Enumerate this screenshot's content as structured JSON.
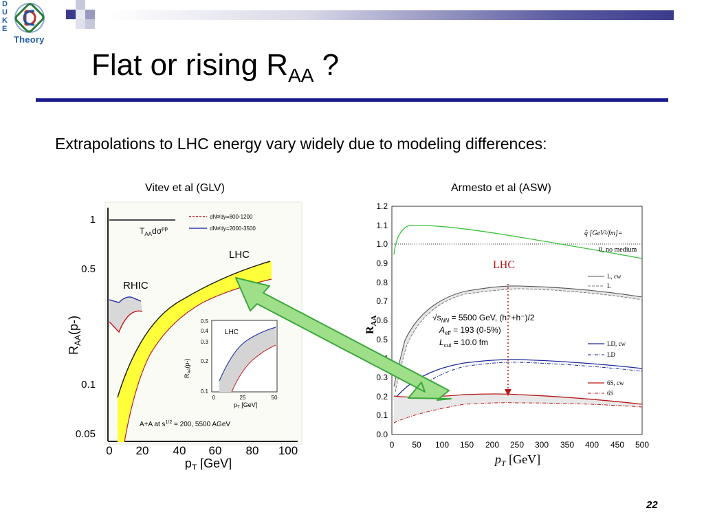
{
  "logo": {
    "letters": [
      "D",
      "U",
      "K",
      "E"
    ],
    "text": "Theory"
  },
  "slide": {
    "title_main": "Flat or rising R",
    "title_sub": "AA",
    "title_end": " ?",
    "subtitle": "Extrapolations to LHC energy vary widely due to modeling differences:",
    "page_number": "22",
    "colors": {
      "title_rule": "#1a1a8e",
      "arrow_fill": "#9fdf8a",
      "arrow_stroke": "#3aa83a"
    }
  },
  "left_plot": {
    "caption": "Vitev et al (GLV)",
    "y_ticks": [
      "1",
      "0.5",
      "0.1",
      "0.05"
    ],
    "x_ticks": [
      "0",
      "20",
      "40",
      "60",
      "80",
      "100"
    ],
    "xlabel_main": "p",
    "xlabel_sub": "T",
    "xlabel_unit": " [GeV]",
    "ylabel_main": "R",
    "ylabel_sub": "AA",
    "ylabel_paren": "(p-)",
    "label_lhc": "LHC",
    "label_rhic": "RHIC",
    "ref_label": "T",
    "ref_label_sub": "AA",
    "ref_label_end": "dσ",
    "ref_label_sup": "pp",
    "legend": [
      "dNᵍ/dy=800-1200",
      "dNᵍ/dy=2000-3500"
    ],
    "bottom_note": "A+A at s",
    "bottom_note_sup": "1/2",
    "bottom_note_end": " = 200, 5500 AGeV",
    "inset": {
      "label": "LHC",
      "y_ticks": [
        "0.5",
        "0.4",
        "0.3",
        "0.2",
        "0.1"
      ],
      "x_ticks": [
        "0",
        "25",
        "50"
      ],
      "ylabel": "R",
      "ylabel_sub": "AA",
      "ylabel_end": "(p-)",
      "xlabel": "p",
      "xlabel_sub": "T",
      "xlabel_end": " [GeV]"
    }
  },
  "right_plot": {
    "caption": "Armesto et al (ASW)",
    "y_ticks": [
      "1.2",
      "1.1",
      "1.0",
      "0.9",
      "0.8",
      "0.7",
      "0.6",
      "0.5",
      "0.4",
      "0.3",
      "0.2",
      "0.1",
      "0.0"
    ],
    "x_ticks": [
      "0",
      "50",
      "100",
      "150",
      "200",
      "250",
      "300",
      "350",
      "400",
      "450",
      "500"
    ],
    "xlabel_main": "p",
    "xlabel_sub": "T",
    "xlabel_unit": " [GeV]",
    "ylabel_main": "R",
    "ylabel_sub": "AA",
    "lhc_label": "LHC",
    "qhat_label": "q̂ [GeV²/fm]=",
    "no_medium": "0, no medium",
    "legend": [
      "L, cw",
      "L",
      "LD, cw",
      "LD",
      "6S, cw",
      "6S"
    ],
    "annotation": {
      "line1": "√s",
      "line1_sub": "NN",
      "line1_end": " = 5500 GeV, (h⁺+h⁻)/2",
      "line2": "A",
      "line2_sub": "eff",
      "line2_end": " = 193 (0-5%)",
      "line3": "L",
      "line3_sub": "cut",
      "line3_end": " = 10.0 fm"
    }
  }
}
